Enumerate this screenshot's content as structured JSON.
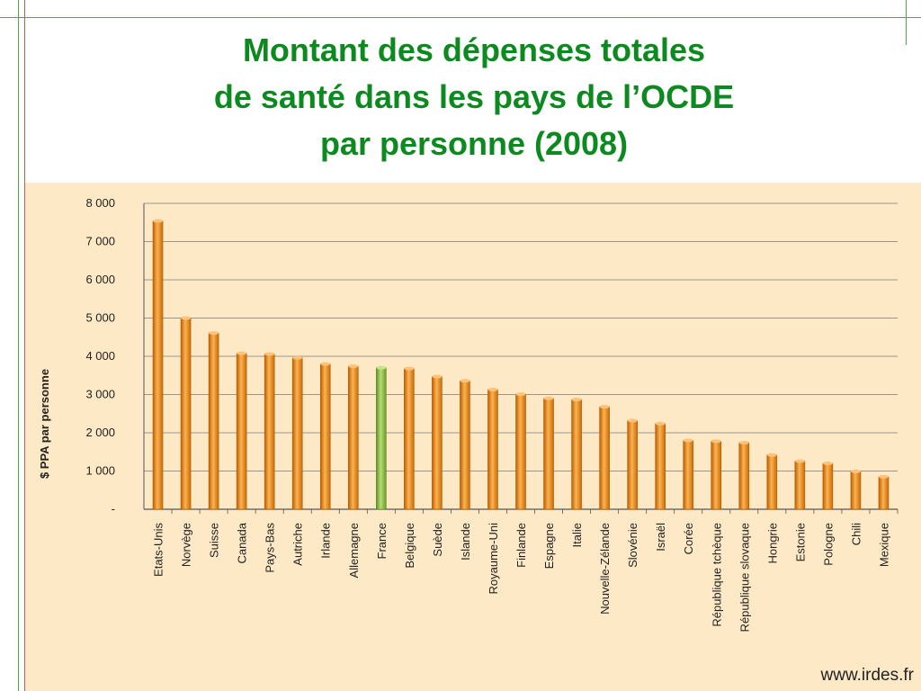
{
  "title_lines": [
    "Montant des dépenses totales",
    "de santé dans les pays de l’OCDE",
    "par personne (2008)"
  ],
  "credit": "www.irdes.fr",
  "colors": {
    "title": "#0d8a1f",
    "bar": "#f08a12",
    "highlight_bar": "#8dbb3c",
    "panel_background": "#fde9c6"
  },
  "chart_data": {
    "type": "bar",
    "title": "Montant des dépenses totales de santé dans les pays de l’OCDE par personne (2008)",
    "xlabel": "",
    "ylabel": "$ PPA par personne",
    "ylim": [
      0,
      8000
    ],
    "yticks": [
      0,
      1000,
      2000,
      3000,
      4000,
      5000,
      6000,
      7000,
      8000
    ],
    "ytick_labels": [
      "-",
      "1 000",
      "2 000",
      "3 000",
      "4 000",
      "5 000",
      "6 000",
      "7 000",
      "8 000"
    ],
    "grid": true,
    "highlight": "France",
    "categories": [
      "Etats-Unis",
      "Norvège",
      "Suisse",
      "Canada",
      "Pays-Bas",
      "Autriche",
      "Irlande",
      "Allemagne",
      "France",
      "Belgique",
      "Suède",
      "Islande",
      "Royaume-Uni",
      "Finlande",
      "Espagne",
      "Italie",
      "Nouvelle-Zélande",
      "Slovénie",
      "Israël",
      "Corée",
      "République tchèque",
      "République slovaque",
      "Hongrie",
      "Estonie",
      "Pologne",
      "Chili",
      "Mexique"
    ],
    "values": [
      7540,
      5000,
      4610,
      4080,
      4060,
      3960,
      3800,
      3740,
      3700,
      3680,
      3470,
      3360,
      3130,
      3010,
      2900,
      2870,
      2680,
      2320,
      2240,
      1800,
      1780,
      1740,
      1420,
      1260,
      1200,
      990,
      850
    ]
  }
}
